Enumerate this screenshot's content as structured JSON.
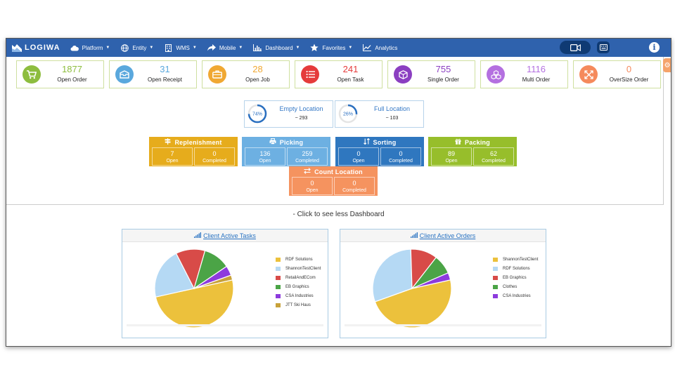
{
  "app": {
    "logo": "LOGIWA"
  },
  "nav": [
    {
      "label": "Platform",
      "icon": "cloud-icon",
      "caret": true
    },
    {
      "label": "Entity",
      "icon": "globe-icon",
      "caret": true
    },
    {
      "label": "WMS",
      "icon": "building-icon",
      "caret": true
    },
    {
      "label": "Mobile",
      "icon": "share-arrow-icon",
      "caret": true
    },
    {
      "label": "Dashboard",
      "icon": "bar-chart-icon",
      "caret": true
    },
    {
      "label": "Favorites",
      "icon": "star-icon",
      "caret": true
    },
    {
      "label": "Analytics",
      "icon": "line-chart-icon",
      "caret": false
    }
  ],
  "kpis": [
    {
      "value": "1877",
      "label": "Open Order",
      "color": "#8dbd3e",
      "icon": "cart-icon"
    },
    {
      "value": "31",
      "label": "Open Receipt",
      "color": "#5aa8dd",
      "icon": "inbox-icon"
    },
    {
      "value": "28",
      "label": "Open Job",
      "color": "#f0a833",
      "icon": "briefcase-icon"
    },
    {
      "value": "241",
      "label": "Open Task",
      "color": "#e53b3b",
      "icon": "list-icon"
    },
    {
      "value": "755",
      "label": "Single Order",
      "color": "#8b3fc1",
      "icon": "cube-icon"
    },
    {
      "value": "1116",
      "label": "Multi Order",
      "color": "#b470e0",
      "icon": "cubes-icon"
    },
    {
      "value": "0",
      "label": "OverSize Order",
      "color": "#f58a5c",
      "icon": "expand-icon"
    }
  ],
  "locations": [
    {
      "percent": "74%",
      "fill": 0.74,
      "title": "Empty Location",
      "count": "~ 293"
    },
    {
      "percent": "26%",
      "fill": 0.26,
      "title": "Full Location",
      "count": "~ 103"
    }
  ],
  "tasks": [
    {
      "title": "Replenishment",
      "icon": "signpost-icon",
      "color": "#e6ac1c",
      "open": "7",
      "completed": "0",
      "open_label": "Open",
      "completed_label": "Completed"
    },
    {
      "title": "Picking",
      "icon": "printer-icon",
      "color": "#6db0e2",
      "open": "136",
      "completed": "259",
      "open_label": "Open",
      "completed_label": "Completed"
    },
    {
      "title": "Sorting",
      "icon": "sort-icon",
      "color": "#2f77bf",
      "open": "0",
      "completed": "0",
      "open_label": "Open",
      "completed_label": "Completed"
    },
    {
      "title": "Packing",
      "icon": "gift-icon",
      "color": "#97be2b",
      "open": "89",
      "completed": "62",
      "open_label": "Open",
      "completed_label": "Completed"
    },
    {
      "title": "Count Location",
      "icon": "exchange-icon",
      "color": "#f5935f",
      "open": "0",
      "completed": "0",
      "open_label": "Open",
      "completed_label": "Completed"
    }
  ],
  "toggle_link": "- Click to see less Dashboard",
  "chart_data": [
    {
      "type": "pie",
      "title": "Client Active Tasks",
      "labels": [
        "RDF Solutions",
        "ShannonTestClient",
        "RetailAndECom",
        "EB Graphics",
        "CSA Industries",
        "JTT Ski Haus"
      ],
      "values": [
        50,
        21,
        12,
        11,
        4,
        2
      ],
      "colors": [
        "#ecc13c",
        "#b5d9f4",
        "#d84b48",
        "#4ba446",
        "#8d3bdd",
        "#c8a23a"
      ]
    },
    {
      "type": "pie",
      "title": "Client Active Orders",
      "labels": [
        "ShannonTestClient",
        "RDF Solutions",
        "EB Graphics",
        "Clothes",
        "CSA Industries"
      ],
      "values": [
        48,
        30,
        11,
        8,
        3
      ],
      "colors": [
        "#ecc13c",
        "#b5d9f4",
        "#d84b48",
        "#4ba446",
        "#8d3bdd"
      ]
    }
  ]
}
